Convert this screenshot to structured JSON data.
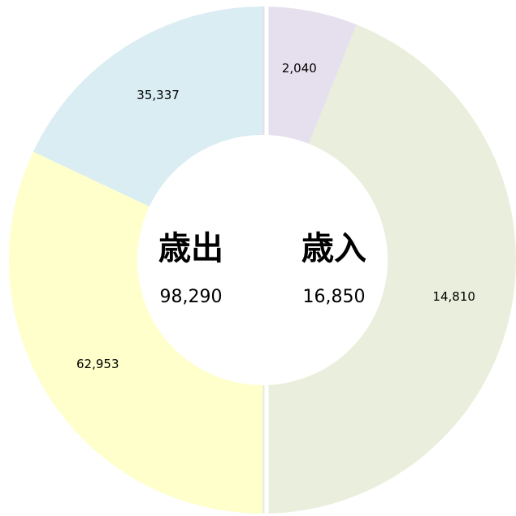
{
  "chart_data": {
    "type": "donut",
    "groups": [
      {
        "name": "歳入",
        "total": 16850,
        "total_label": "16,850",
        "values": [
          2040,
          14810
        ],
        "value_labels": [
          "2,040",
          "14,810"
        ],
        "colors": [
          "#e6e0ee",
          "#eaeedc"
        ]
      },
      {
        "name": "歳出",
        "total": 98290,
        "total_label": "98,290",
        "values": [
          35337,
          62953
        ],
        "value_labels": [
          "35,337",
          "62,953"
        ],
        "colors": [
          "#d9edf3",
          "#ffffcc"
        ]
      }
    ]
  }
}
